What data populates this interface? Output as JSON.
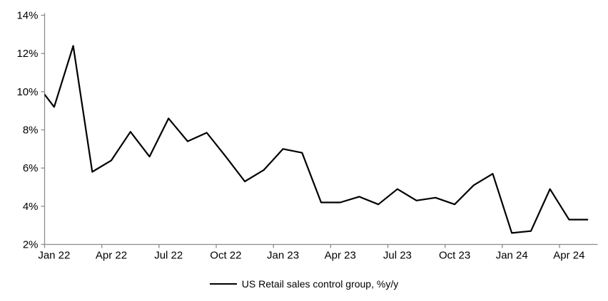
{
  "chart_data": {
    "type": "line",
    "title": "",
    "xlabel": "",
    "ylabel": "",
    "x": [
      "Dec 21",
      "Jan 22",
      "Feb 22",
      "Mar 22",
      "Apr 22",
      "May 22",
      "Jun 22",
      "Jul 22",
      "Aug 22",
      "Sep 22",
      "Oct 22",
      "Nov 22",
      "Dec 22",
      "Jan 23",
      "Feb 23",
      "Mar 23",
      "Apr 23",
      "May 23",
      "Jun 23",
      "Jul 23",
      "Aug 23",
      "Sep 23",
      "Oct 23",
      "Nov 23",
      "Dec 23",
      "Jan 24",
      "Feb 24",
      "Mar 24",
      "Apr 24",
      "May 24"
    ],
    "series": [
      {
        "name": "US Retail sales control group, %y/y",
        "color": "#000000",
        "values": [
          10.5,
          9.2,
          12.4,
          5.8,
          6.4,
          7.9,
          6.6,
          8.6,
          7.4,
          7.85,
          6.6,
          5.3,
          5.9,
          7.0,
          6.8,
          4.2,
          4.2,
          4.5,
          4.1,
          4.9,
          4.3,
          4.45,
          4.1,
          5.1,
          5.7,
          2.6,
          2.7,
          4.9,
          3.3,
          3.3
        ]
      }
    ],
    "clipped_lead_in": 1,
    "x_tick_labels": [
      "Jan 22",
      "Apr 22",
      "Jul 22",
      "Oct 22",
      "Jan 23",
      "Apr 23",
      "Jul 23",
      "Oct 23",
      "Jan 24",
      "Apr 24"
    ],
    "x_tick_interval": 3,
    "y_ticks": [
      2,
      4,
      6,
      8,
      10,
      12,
      14
    ],
    "y_tick_labels": [
      "2%",
      "4%",
      "6%",
      "8%",
      "10%",
      "12%",
      "14%"
    ],
    "ylim": [
      2,
      14
    ],
    "grid": false,
    "legend_position": "bottom-center",
    "colors": {
      "line": "#000000",
      "axis": "#8c8c8c",
      "text": "#000000",
      "background": "#ffffff"
    }
  },
  "legend": {
    "label": "US Retail sales control group, %y/y"
  }
}
